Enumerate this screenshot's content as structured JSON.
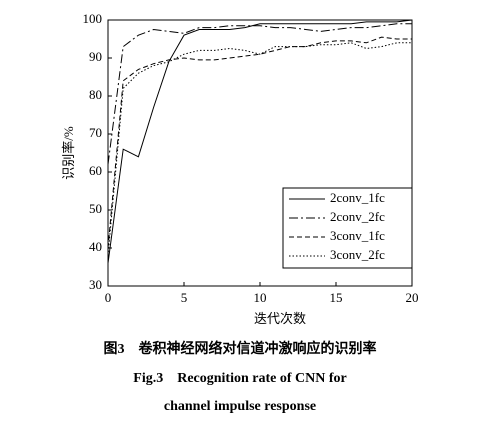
{
  "chart_data": {
    "type": "line",
    "x": [
      0,
      1,
      2,
      3,
      4,
      5,
      6,
      7,
      8,
      9,
      10,
      11,
      12,
      13,
      14,
      15,
      16,
      17,
      18,
      19,
      20
    ],
    "series": [
      {
        "name": "2conv_1fc",
        "color": "#000000",
        "line_style": "solid",
        "values": [
          36,
          66,
          64,
          77,
          89,
          96,
          97.5,
          97.5,
          97.5,
          98,
          99,
          99,
          99,
          99,
          99,
          99,
          99,
          99.5,
          99.5,
          99.5,
          100
        ]
      },
      {
        "name": "2conv_2fc",
        "color": "#000000",
        "line_style": "dash-dot",
        "values": [
          62,
          93,
          96,
          97.5,
          97,
          96.5,
          98,
          98,
          98.5,
          98.5,
          98.5,
          98,
          98,
          97.5,
          97,
          97.5,
          98,
          98,
          98.5,
          99,
          99
        ]
      },
      {
        "name": "3conv_1fc",
        "color": "#000000",
        "line_style": "dashed",
        "values": [
          40,
          84,
          87,
          88.5,
          89.5,
          90,
          89.5,
          89.5,
          90,
          90.5,
          91,
          92,
          93,
          93,
          94,
          94.5,
          94.5,
          94,
          95.5,
          95,
          95
        ]
      },
      {
        "name": "3conv_2fc",
        "color": "#000000",
        "line_style": "dotted",
        "values": [
          38,
          82,
          86,
          88,
          89,
          91,
          92,
          92,
          92.5,
          92,
          91,
          93,
          93,
          93,
          93.5,
          93.5,
          94,
          92.5,
          93,
          94,
          94
        ]
      }
    ],
    "xlim": [
      0,
      20
    ],
    "xticks": [
      0,
      5,
      10,
      15,
      20
    ],
    "ylim": [
      30,
      100
    ],
    "yticks": [
      30,
      40,
      50,
      60,
      70,
      80,
      90,
      100
    ],
    "x_label": "迭代次数",
    "y_label": "识别率/%",
    "legend": "lower right",
    "grid": false,
    "captions": [
      "图3　卷积神经网络对信道冲激响应的识别率",
      "Fig.3　Recognition rate of CNN for",
      "channel impulse response"
    ]
  }
}
